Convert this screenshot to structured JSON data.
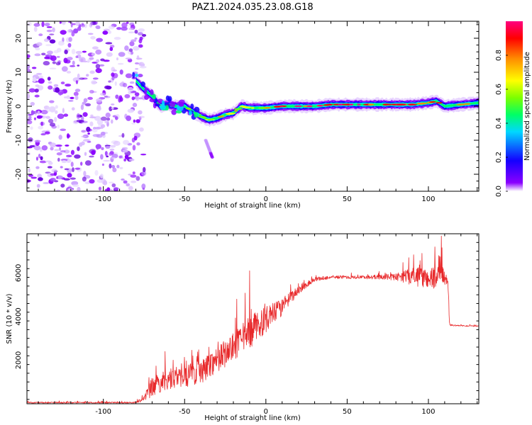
{
  "title": "PAZ1.2024.035.23.08.G18",
  "chart_data": [
    {
      "type": "heatmap",
      "xlabel": "Height of straight line (km)",
      "ylabel": "Frequency (Hz)",
      "xlim": [
        -147,
        131
      ],
      "ylim": [
        -25,
        25
      ],
      "x_ticks": [
        -100,
        -50,
        0,
        50,
        100
      ],
      "y_ticks": [
        -20,
        -10,
        0,
        10,
        20
      ],
      "colorbar": {
        "label": "Normalized spectral amplitude",
        "range": [
          0,
          1
        ],
        "ticks": [
          "0.0",
          "0.2",
          "0.4",
          "0.6",
          "0.8"
        ],
        "colormap": [
          "#ffffff",
          "#8a00ff",
          "#1400ff",
          "#00d8ff",
          "#00ff66",
          "#7cff00",
          "#ffff00",
          "#ff8c00",
          "#ff0000",
          "#ff0080"
        ]
      },
      "noise_region_x": [
        -147,
        -80
      ],
      "ridge": [
        {
          "x": -80,
          "y": 7.5
        },
        {
          "x": -75,
          "y": 5
        },
        {
          "x": -70,
          "y": 3
        },
        {
          "x": -65,
          "y": 0
        },
        {
          "x": -60,
          "y": 0.5
        },
        {
          "x": -55,
          "y": 0
        },
        {
          "x": -50,
          "y": 0
        },
        {
          "x": -45,
          "y": -1.5
        },
        {
          "x": -40,
          "y": -3
        },
        {
          "x": -35,
          "y": -4
        },
        {
          "x": -30,
          "y": -3.5
        },
        {
          "x": -25,
          "y": -2.5
        },
        {
          "x": -20,
          "y": -2
        },
        {
          "x": -15,
          "y": 0
        },
        {
          "x": -10,
          "y": -0.5
        },
        {
          "x": -5,
          "y": -0.5
        },
        {
          "x": 0,
          "y": -0.5
        },
        {
          "x": 10,
          "y": 0
        },
        {
          "x": 20,
          "y": 0
        },
        {
          "x": 30,
          "y": 0
        },
        {
          "x": 40,
          "y": 0.5
        },
        {
          "x": 50,
          "y": 0.5
        },
        {
          "x": 60,
          "y": 0.5
        },
        {
          "x": 70,
          "y": 0.5
        },
        {
          "x": 80,
          "y": 0.5
        },
        {
          "x": 90,
          "y": 0.5
        },
        {
          "x": 100,
          "y": 1
        },
        {
          "x": 105,
          "y": 1.5
        },
        {
          "x": 110,
          "y": 0
        },
        {
          "x": 120,
          "y": 0.5
        },
        {
          "x": 131,
          "y": 1
        }
      ],
      "side_streak": [
        {
          "x": -37,
          "y": -10
        },
        {
          "x": -33,
          "y": -15
        }
      ]
    },
    {
      "type": "line",
      "xlabel": "Height of straight line (km)",
      "ylabel": "SNR (10 * v/v)",
      "xlim": [
        -147,
        131
      ],
      "ylim": [
        0,
        7800
      ],
      "x_ticks": [
        -100,
        -50,
        0,
        50,
        100
      ],
      "y_ticks": [
        2000,
        4000,
        6000
      ],
      "color": "#e8282a",
      "series": [
        {
          "envelope": [
            {
              "x": -147,
              "base": 50,
              "amp": 60
            },
            {
              "x": -80,
              "base": 50,
              "amp": 60
            },
            {
              "x": -75,
              "base": 250,
              "amp": 300
            },
            {
              "x": -70,
              "base": 700,
              "amp": 900
            },
            {
              "x": -60,
              "base": 1100,
              "amp": 1000
            },
            {
              "x": -50,
              "base": 1200,
              "amp": 1000
            },
            {
              "x": -40,
              "base": 1400,
              "amp": 1100
            },
            {
              "x": -30,
              "base": 2000,
              "amp": 1200
            },
            {
              "x": -20,
              "base": 2500,
              "amp": 1300
            },
            {
              "x": -10,
              "base": 3200,
              "amp": 1500
            },
            {
              "x": 0,
              "base": 3800,
              "amp": 1200
            },
            {
              "x": 10,
              "base": 4400,
              "amp": 800
            },
            {
              "x": 20,
              "base": 5200,
              "amp": 400
            },
            {
              "x": 30,
              "base": 5700,
              "amp": 200
            },
            {
              "x": 40,
              "base": 5800,
              "amp": 150
            },
            {
              "x": 60,
              "base": 5800,
              "amp": 150
            },
            {
              "x": 80,
              "base": 5800,
              "amp": 300
            },
            {
              "x": 90,
              "base": 5800,
              "amp": 800
            },
            {
              "x": 100,
              "base": 5700,
              "amp": 1000
            },
            {
              "x": 108,
              "base": 5800,
              "amp": 1100
            },
            {
              "x": 112,
              "base": 5600,
              "amp": 300
            },
            {
              "x": 113,
              "base": 3600,
              "amp": 60
            },
            {
              "x": 131,
              "base": 3550,
              "amp": 50
            }
          ],
          "spikes": [
            {
              "x": -10,
              "y": 6100
            },
            {
              "x": -18,
              "y": 4800
            },
            {
              "x": 108,
              "y": 7700
            },
            {
              "x": 104,
              "y": 7200
            },
            {
              "x": 96,
              "y": 6900
            },
            {
              "x": 88,
              "y": 6700
            },
            {
              "x": -62,
              "y": 2400
            },
            {
              "x": -45,
              "y": 2200
            },
            {
              "x": -35,
              "y": 2600
            }
          ]
        }
      ]
    }
  ]
}
